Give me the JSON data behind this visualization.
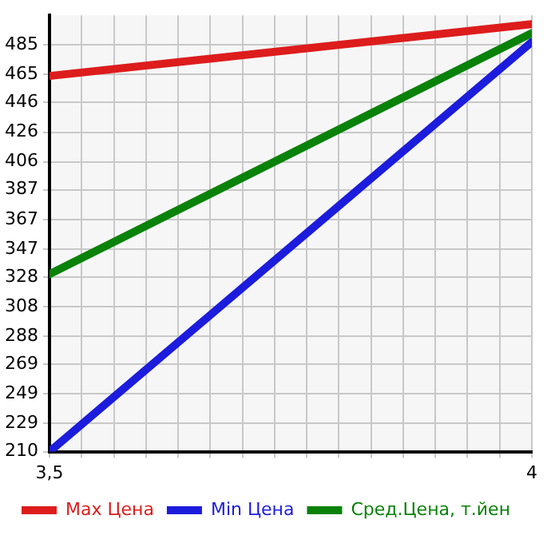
{
  "chart_data": {
    "type": "line",
    "x": [
      3.5,
      4
    ],
    "series": [
      {
        "name": "Max Цена",
        "color": "#dd1c1c",
        "values": [
          464,
          499
        ]
      },
      {
        "name": "Min Цена",
        "color": "#1c1cdd",
        "values": [
          210,
          487
        ]
      },
      {
        "name": "Сред.Цена, т.йен",
        "color": "#0a820a",
        "values": [
          330,
          493
        ]
      }
    ],
    "xlim": [
      3.5,
      4
    ],
    "xticks": [
      {
        "value": 3.5,
        "label": "3,5"
      },
      {
        "value": 3.5333,
        "label": null
      },
      {
        "value": 3.5667,
        "label": null
      },
      {
        "value": 3.6,
        "label": null
      },
      {
        "value": 3.6333,
        "label": null
      },
      {
        "value": 3.6667,
        "label": null
      },
      {
        "value": 3.7,
        "label": null
      },
      {
        "value": 3.7333,
        "label": null
      },
      {
        "value": 3.7667,
        "label": null
      },
      {
        "value": 3.8,
        "label": null
      },
      {
        "value": 3.8333,
        "label": null
      },
      {
        "value": 3.8667,
        "label": null
      },
      {
        "value": 3.9,
        "label": null
      },
      {
        "value": 3.9333,
        "label": null
      },
      {
        "value": 3.9667,
        "label": null
      },
      4
    ],
    "ylim": [
      210,
      505
    ],
    "yticks": [
      210,
      229,
      249,
      269,
      288,
      308,
      328,
      347,
      367,
      387,
      406,
      426,
      446,
      465,
      485
    ],
    "grid": true,
    "legend": "bottom",
    "marker": "none",
    "line_style": "solid"
  }
}
